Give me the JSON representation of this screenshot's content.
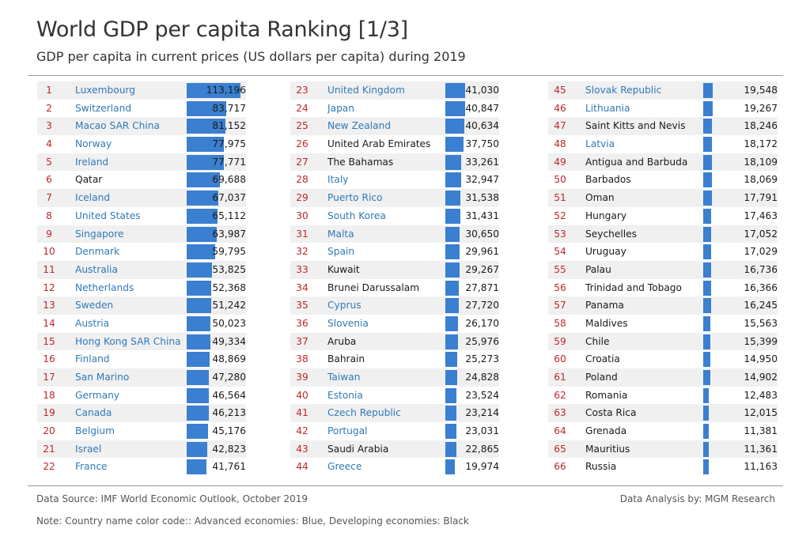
{
  "title": "World GDP per capita Ranking [1/3]",
  "subtitle": "GDP per capita in current prices (US dollars per capita) during 2019",
  "footer": {
    "source": "Data Source: IMF World Economic Outlook, October 2019",
    "analysis": "Data Analysis by: MGM Research",
    "note": "Note: Country name color code:: Advanced economies: Blue, Developing economies: Black"
  },
  "colors": {
    "advanced": "#2f7ab8",
    "developing": "#1a1a1a",
    "rank": "#c0262b",
    "bar": "#3a7fd0"
  },
  "chart_data": {
    "type": "bar",
    "orientation": "horizontal",
    "layout": "ranked table, three columns of 22 rows",
    "rows": [
      {
        "rank": "1",
        "country": "Luxembourg",
        "value": 113196,
        "label": "113,196",
        "group": "advanced"
      },
      {
        "rank": "2",
        "country": "Switzerland",
        "value": 83717,
        "label": "83,717",
        "group": "advanced"
      },
      {
        "rank": "3",
        "country": "Macao SAR China",
        "value": 81152,
        "label": "81,152",
        "group": "advanced"
      },
      {
        "rank": "4",
        "country": "Norway",
        "value": 77975,
        "label": "77,975",
        "group": "advanced"
      },
      {
        "rank": "5",
        "country": "Ireland",
        "value": 77771,
        "label": "77,771",
        "group": "advanced"
      },
      {
        "rank": "6",
        "country": "Qatar",
        "value": 69688,
        "label": "69,688",
        "group": "developing"
      },
      {
        "rank": "7",
        "country": "Iceland",
        "value": 67037,
        "label": "67,037",
        "group": "advanced"
      },
      {
        "rank": "8",
        "country": "United States",
        "value": 65112,
        "label": "65,112",
        "group": "advanced"
      },
      {
        "rank": "9",
        "country": "Singapore",
        "value": 63987,
        "label": "63,987",
        "group": "advanced"
      },
      {
        "rank": "10",
        "country": "Denmark",
        "value": 59795,
        "label": "59,795",
        "group": "advanced"
      },
      {
        "rank": "11",
        "country": "Australia",
        "value": 53825,
        "label": "53,825",
        "group": "advanced"
      },
      {
        "rank": "12",
        "country": "Netherlands",
        "value": 52368,
        "label": "52,368",
        "group": "advanced"
      },
      {
        "rank": "13",
        "country": "Sweden",
        "value": 51242,
        "label": "51,242",
        "group": "advanced"
      },
      {
        "rank": "14",
        "country": "Austria",
        "value": 50023,
        "label": "50,023",
        "group": "advanced"
      },
      {
        "rank": "15",
        "country": "Hong Kong SAR China",
        "value": 49334,
        "label": "49,334",
        "group": "advanced"
      },
      {
        "rank": "16",
        "country": "Finland",
        "value": 48869,
        "label": "48,869",
        "group": "advanced"
      },
      {
        "rank": "17",
        "country": "San Marino",
        "value": 47280,
        "label": "47,280",
        "group": "advanced"
      },
      {
        "rank": "18",
        "country": "Germany",
        "value": 46564,
        "label": "46,564",
        "group": "advanced"
      },
      {
        "rank": "19",
        "country": "Canada",
        "value": 46213,
        "label": "46,213",
        "group": "advanced"
      },
      {
        "rank": "20",
        "country": "Belgium",
        "value": 45176,
        "label": "45,176",
        "group": "advanced"
      },
      {
        "rank": "21",
        "country": "Israel",
        "value": 42823,
        "label": "42,823",
        "group": "advanced"
      },
      {
        "rank": "22",
        "country": "France",
        "value": 41761,
        "label": "41,761",
        "group": "advanced"
      },
      {
        "rank": "23",
        "country": "United Kingdom",
        "value": 41030,
        "label": "41,030",
        "group": "advanced"
      },
      {
        "rank": "24",
        "country": "Japan",
        "value": 40847,
        "label": "40,847",
        "group": "advanced"
      },
      {
        "rank": "25",
        "country": "New Zealand",
        "value": 40634,
        "label": "40,634",
        "group": "advanced"
      },
      {
        "rank": "26",
        "country": "United Arab Emirates",
        "value": 37750,
        "label": "37,750",
        "group": "developing"
      },
      {
        "rank": "27",
        "country": "The Bahamas",
        "value": 33261,
        "label": "33,261",
        "group": "developing"
      },
      {
        "rank": "28",
        "country": "Italy",
        "value": 32947,
        "label": "32,947",
        "group": "advanced"
      },
      {
        "rank": "29",
        "country": "Puerto Rico",
        "value": 31538,
        "label": "31,538",
        "group": "advanced"
      },
      {
        "rank": "30",
        "country": "South Korea",
        "value": 31431,
        "label": "31,431",
        "group": "advanced"
      },
      {
        "rank": "31",
        "country": "Malta",
        "value": 30650,
        "label": "30,650",
        "group": "advanced"
      },
      {
        "rank": "32",
        "country": "Spain",
        "value": 29961,
        "label": "29,961",
        "group": "advanced"
      },
      {
        "rank": "33",
        "country": "Kuwait",
        "value": 29267,
        "label": "29,267",
        "group": "developing"
      },
      {
        "rank": "34",
        "country": "Brunei Darussalam",
        "value": 27871,
        "label": "27,871",
        "group": "developing"
      },
      {
        "rank": "35",
        "country": "Cyprus",
        "value": 27720,
        "label": "27,720",
        "group": "advanced"
      },
      {
        "rank": "36",
        "country": "Slovenia",
        "value": 26170,
        "label": "26,170",
        "group": "advanced"
      },
      {
        "rank": "37",
        "country": "Aruba",
        "value": 25976,
        "label": "25,976",
        "group": "developing"
      },
      {
        "rank": "38",
        "country": "Bahrain",
        "value": 25273,
        "label": "25,273",
        "group": "developing"
      },
      {
        "rank": "39",
        "country": "Taiwan",
        "value": 24828,
        "label": "24,828",
        "group": "advanced"
      },
      {
        "rank": "40",
        "country": "Estonia",
        "value": 23524,
        "label": "23,524",
        "group": "advanced"
      },
      {
        "rank": "41",
        "country": "Czech Republic",
        "value": 23214,
        "label": "23,214",
        "group": "advanced"
      },
      {
        "rank": "42",
        "country": "Portugal",
        "value": 23031,
        "label": "23,031",
        "group": "advanced"
      },
      {
        "rank": "43",
        "country": "Saudi Arabia",
        "value": 22865,
        "label": "22,865",
        "group": "developing"
      },
      {
        "rank": "44",
        "country": "Greece",
        "value": 19974,
        "label": "19,974",
        "group": "advanced"
      },
      {
        "rank": "45",
        "country": "Slovak Republic",
        "value": 19548,
        "label": "19,548",
        "group": "advanced"
      },
      {
        "rank": "46",
        "country": "Lithuania",
        "value": 19267,
        "label": "19,267",
        "group": "advanced"
      },
      {
        "rank": "47",
        "country": "Saint Kitts and Nevis",
        "value": 18246,
        "label": "18,246",
        "group": "developing"
      },
      {
        "rank": "48",
        "country": "Latvia",
        "value": 18172,
        "label": "18,172",
        "group": "advanced"
      },
      {
        "rank": "49",
        "country": "Antigua and Barbuda",
        "value": 18109,
        "label": "18,109",
        "group": "developing"
      },
      {
        "rank": "50",
        "country": "Barbados",
        "value": 18069,
        "label": "18,069",
        "group": "developing"
      },
      {
        "rank": "51",
        "country": "Oman",
        "value": 17791,
        "label": "17,791",
        "group": "developing"
      },
      {
        "rank": "52",
        "country": "Hungary",
        "value": 17463,
        "label": "17,463",
        "group": "developing"
      },
      {
        "rank": "53",
        "country": "Seychelles",
        "value": 17052,
        "label": "17,052",
        "group": "developing"
      },
      {
        "rank": "54",
        "country": "Uruguay",
        "value": 17029,
        "label": "17,029",
        "group": "developing"
      },
      {
        "rank": "55",
        "country": "Palau",
        "value": 16736,
        "label": "16,736",
        "group": "developing"
      },
      {
        "rank": "56",
        "country": "Trinidad and Tobago",
        "value": 16366,
        "label": "16,366",
        "group": "developing"
      },
      {
        "rank": "57",
        "country": "Panama",
        "value": 16245,
        "label": "16,245",
        "group": "developing"
      },
      {
        "rank": "58",
        "country": "Maldives",
        "value": 15563,
        "label": "15,563",
        "group": "developing"
      },
      {
        "rank": "59",
        "country": "Chile",
        "value": 15399,
        "label": "15,399",
        "group": "developing"
      },
      {
        "rank": "60",
        "country": "Croatia",
        "value": 14950,
        "label": "14,950",
        "group": "developing"
      },
      {
        "rank": "61",
        "country": "Poland",
        "value": 14902,
        "label": "14,902",
        "group": "developing"
      },
      {
        "rank": "62",
        "country": "Romania",
        "value": 12483,
        "label": "12,483",
        "group": "developing"
      },
      {
        "rank": "63",
        "country": "Costa Rica",
        "value": 12015,
        "label": "12,015",
        "group": "developing"
      },
      {
        "rank": "64",
        "country": "Grenada",
        "value": 11381,
        "label": "11,381",
        "group": "developing"
      },
      {
        "rank": "65",
        "country": "Mauritius",
        "value": 11361,
        "label": "11,361",
        "group": "developing"
      },
      {
        "rank": "66",
        "country": "Russia",
        "value": 11163,
        "label": "11,163",
        "group": "developing"
      }
    ]
  }
}
